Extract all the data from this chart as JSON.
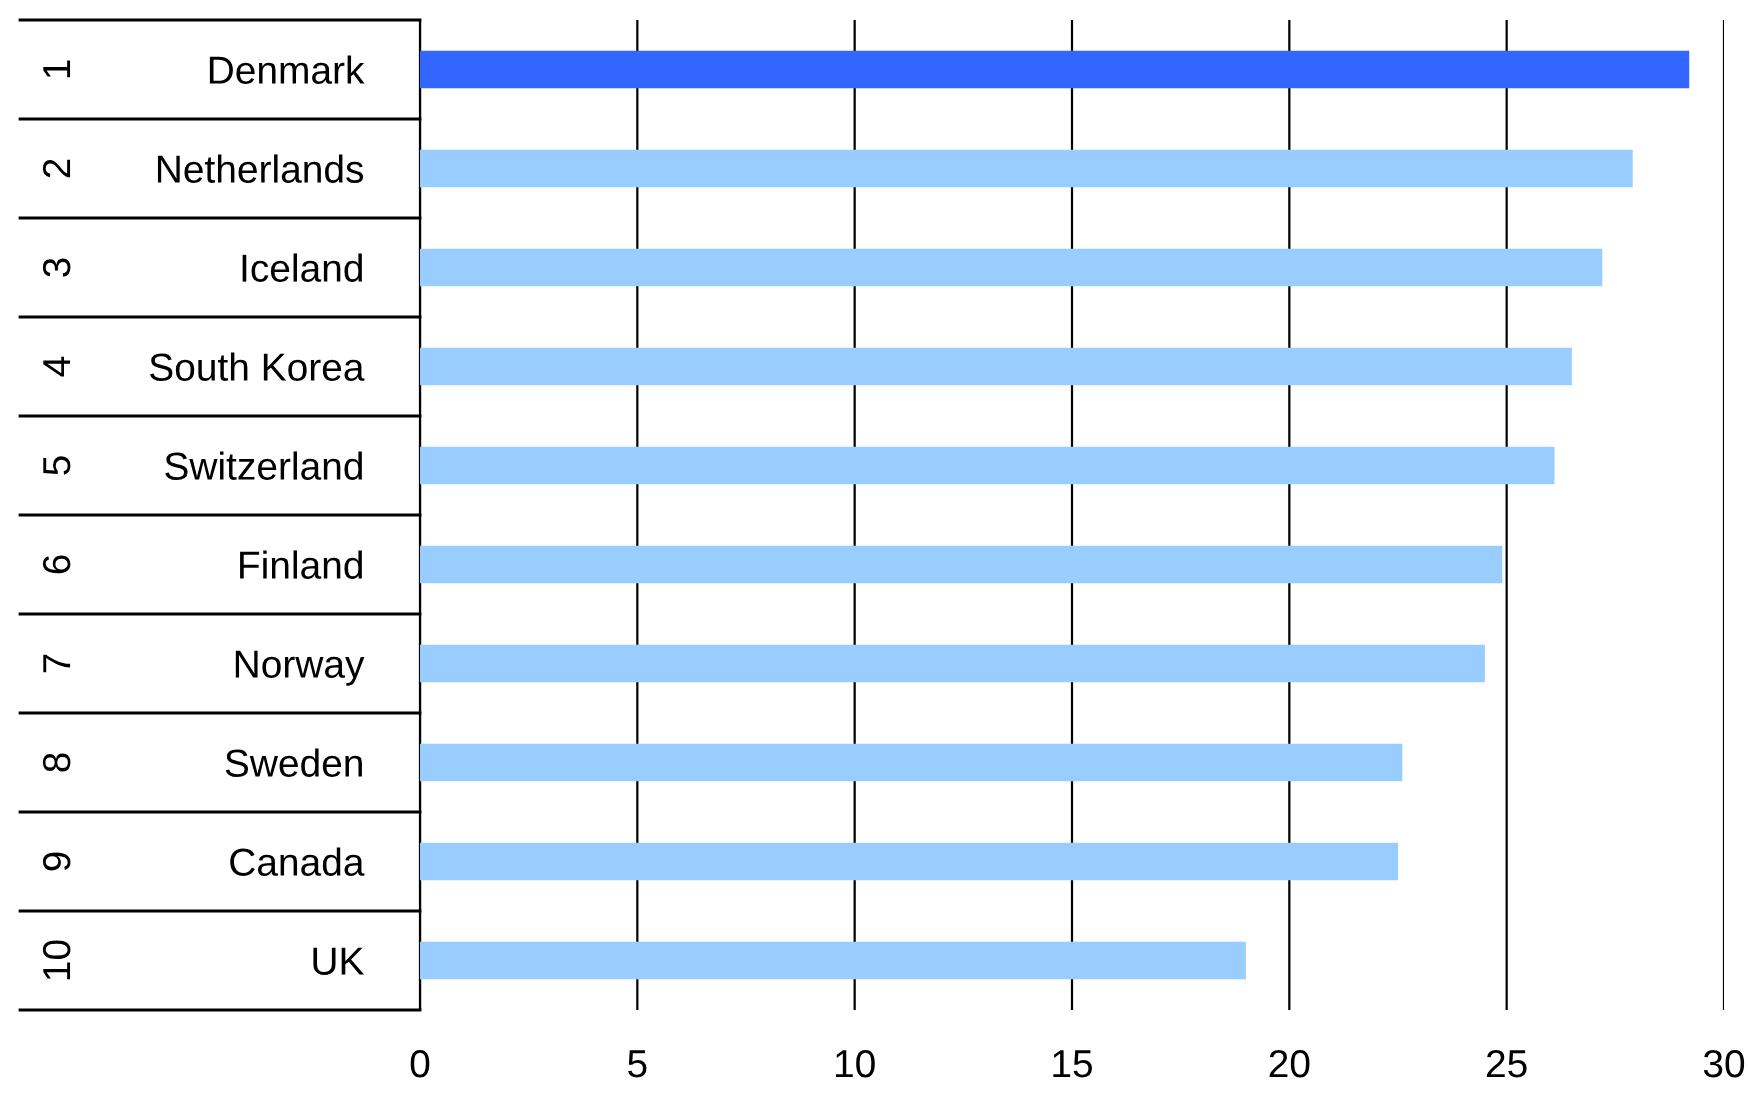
{
  "chart_data": {
    "type": "bar",
    "orientation": "horizontal",
    "categories": [
      "Denmark",
      "Netherlands",
      "Iceland",
      "South Korea",
      "Switzerland",
      "Finland",
      "Norway",
      "Sweden",
      "Canada",
      "UK"
    ],
    "values": [
      29.2,
      27.9,
      27.2,
      26.5,
      26.1,
      24.9,
      24.5,
      22.6,
      22.5,
      19.0
    ],
    "colors": [
      "#3366ff",
      "#99ccff",
      "#99ccff",
      "#99ccff",
      "#99ccff",
      "#99ccff",
      "#99ccff",
      "#99ccff",
      "#99ccff",
      "#99ccff"
    ],
    "xlim": [
      0,
      30
    ],
    "xticks": [
      0,
      5,
      10,
      15,
      20,
      25,
      30
    ],
    "grid": "x",
    "annotations": [
      "1",
      "2",
      "3",
      "4",
      "5",
      "6",
      "7",
      "8",
      "9",
      "10"
    ]
  }
}
